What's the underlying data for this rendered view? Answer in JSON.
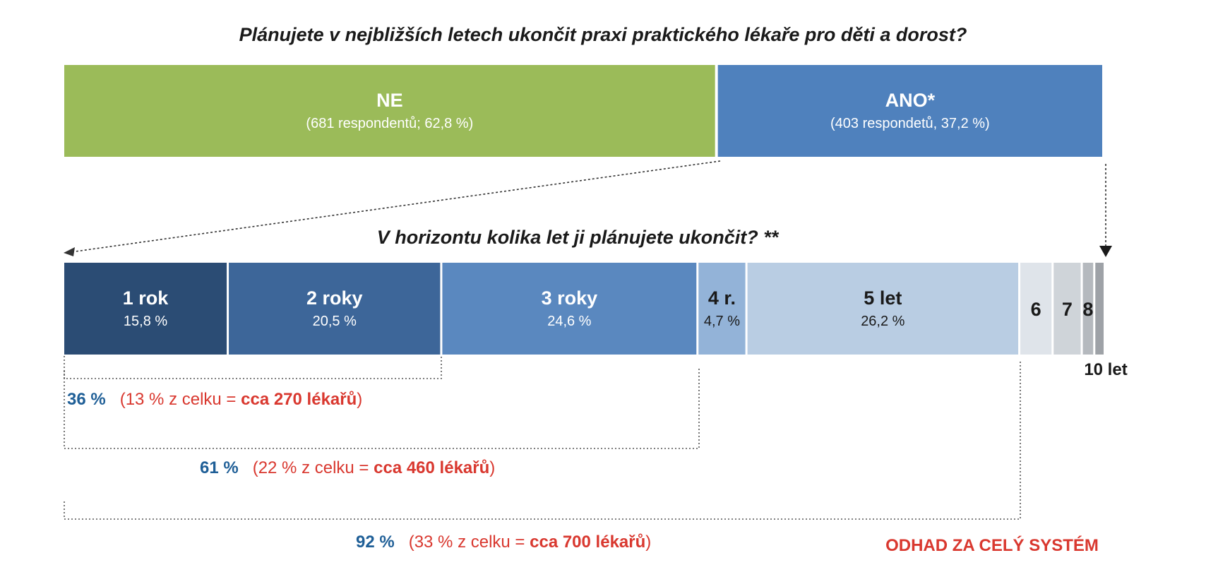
{
  "chart_data": {
    "type": "bar",
    "orientation": "horizontal-stacked",
    "title_top": "Plánujete v nejbližších letech ukončit praxi praktického lékaře pro děti a dorost?",
    "top_bar": [
      {
        "label": "NE",
        "detail": "(681 respondentů; 62,8 %)",
        "value": 62.8,
        "color": "#9bbb59"
      },
      {
        "label": "ANO*",
        "detail": "(403 respondetů, 37,2 %)",
        "value": 37.2,
        "color": "#4f81bd"
      }
    ],
    "title_bottom": "V horizontu kolika let ji plánujete ukončit? **",
    "bottom_bar": [
      {
        "label": "1 rok",
        "detail": "15,8 %",
        "value": 15.8,
        "color": "#2b4c74"
      },
      {
        "label": "2 roky",
        "detail": "20,5 %",
        "value": 20.5,
        "color": "#3d6699"
      },
      {
        "label": "3 roky",
        "detail": "24,6 %",
        "value": 24.6,
        "color": "#5a88bf"
      },
      {
        "label": "4 r.",
        "detail": "4,7 %",
        "value": 4.7,
        "color": "#93b3d8"
      },
      {
        "label": "5 let",
        "detail": "26,2 %",
        "value": 26.2,
        "color": "#b9cde3"
      },
      {
        "label": "6",
        "detail": "",
        "value": 3.2,
        "color": "#dfe4ea"
      },
      {
        "label": "7",
        "detail": "",
        "value": 2.8,
        "color": "#cfd4d9"
      },
      {
        "label": "8",
        "detail": "",
        "value": 1.2,
        "color": "#b5b9be"
      },
      {
        "label": "",
        "detail": "",
        "value": 1.0,
        "color": "#9ea2a7"
      }
    ],
    "end_label": "10 let",
    "brackets": [
      {
        "pct": "36 %",
        "note_start": "(13 % z celku = ",
        "note_bold": "cca 270 lékařů",
        "note_end": ")"
      },
      {
        "pct": "61 %",
        "note_start": "(22 % z celku = ",
        "note_bold": "cca 460 lékařů",
        "note_end": ")"
      },
      {
        "pct": "92 %",
        "note_start": "(33 % z celku = ",
        "note_bold": "cca 700 lékařů",
        "note_end": ")"
      }
    ],
    "system_label": "ODHAD ZA CELÝ SYSTÉM",
    "colors": {
      "pct": "#1f5f97",
      "note": "#d9382f"
    }
  }
}
